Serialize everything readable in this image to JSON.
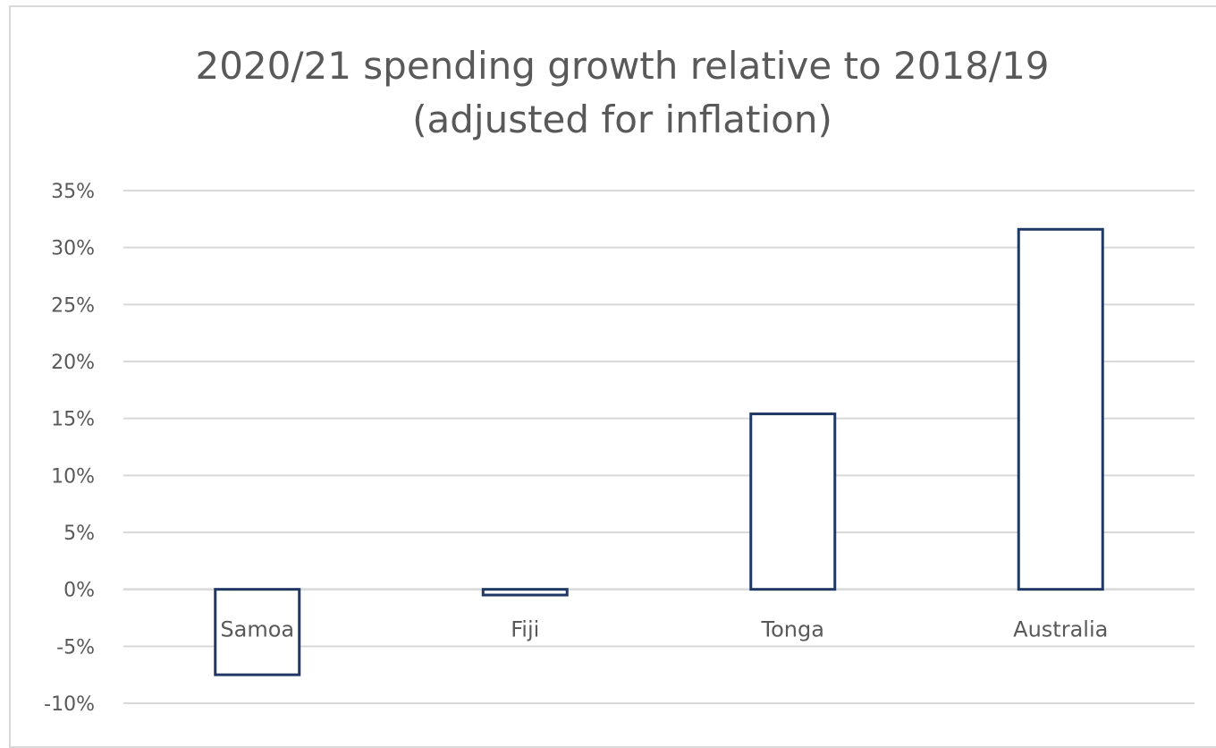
{
  "chart_data": {
    "type": "bar",
    "title_lines": [
      "2020/21 spending growth relative to 2018/19",
      "(adjusted for inflation)"
    ],
    "categories": [
      "Samoa",
      "Fiji",
      "Tonga",
      "Australia"
    ],
    "values": [
      -7.5,
      -0.5,
      15.4,
      31.6
    ],
    "ylim": [
      -10,
      35
    ],
    "yticks": [
      35,
      30,
      25,
      20,
      15,
      10,
      5,
      0,
      -5,
      -10
    ],
    "ytick_labels": [
      "35%",
      "30%",
      "25%",
      "20%",
      "15%",
      "10%",
      "5%",
      "0%",
      "-5%",
      "-10%"
    ],
    "grid": true,
    "legend": "none",
    "bar_style": "outline",
    "colors": {
      "bar_outline": "#1f3864",
      "gridline": "#d9d9d9",
      "text": "#595959"
    }
  }
}
